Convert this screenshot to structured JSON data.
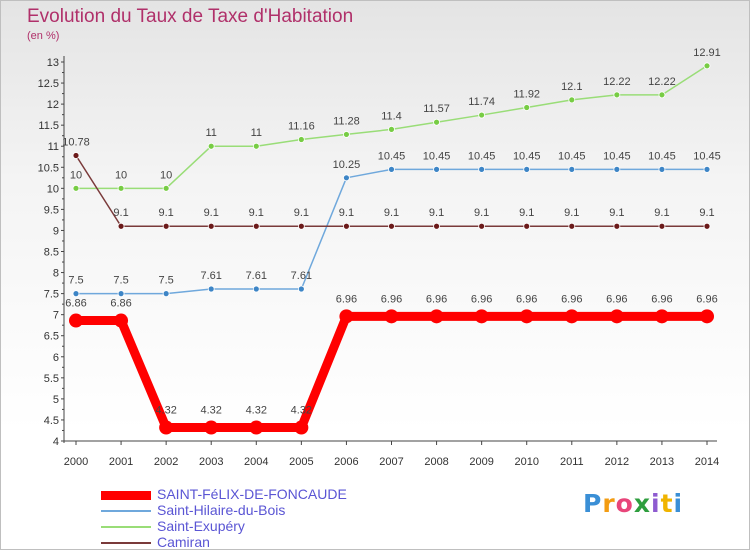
{
  "chart_data": {
    "type": "line",
    "title": "Evolution du Taux de Taxe d'Habitation",
    "unit_label": "(en %)",
    "x": [
      "2000",
      "2001",
      "2002",
      "2003",
      "2004",
      "2005",
      "2006",
      "2007",
      "2008",
      "2009",
      "2010",
      "2011",
      "2012",
      "2013",
      "2014"
    ],
    "ylim": [
      4,
      13
    ],
    "yticks": [
      "4",
      "4.5",
      "5",
      "5.5",
      "6",
      "6.5",
      "7",
      "7.5",
      "8",
      "8.5",
      "9",
      "9.5",
      "10",
      "10.5",
      "11",
      "11.5",
      "12",
      "12.5",
      "13"
    ],
    "grid": false,
    "legend_position": "bottom-left",
    "series": [
      {
        "name": "SAINT-FéLIX-DE-FONCAUDE",
        "color": "#ff0000",
        "values": [
          6.86,
          6.86,
          4.32,
          4.32,
          4.32,
          4.32,
          6.96,
          6.96,
          6.96,
          6.96,
          6.96,
          6.96,
          6.96,
          6.96,
          6.96
        ],
        "labels": [
          "6.86",
          "6.86",
          "4.32",
          "4.32",
          "4.32",
          "4.32",
          "6.96",
          "6.96",
          "6.96",
          "6.96",
          "6.96",
          "6.96",
          "6.96",
          "6.96",
          "6.96"
        ]
      },
      {
        "name": "Saint-Hilaire-du-Bois",
        "color": "#6fa8dc",
        "marker_color": "#3d85c6",
        "values": [
          7.5,
          7.5,
          7.5,
          7.61,
          7.61,
          7.61,
          10.25,
          10.45,
          10.45,
          10.45,
          10.45,
          10.45,
          10.45,
          10.45,
          10.45
        ],
        "labels": [
          "7.5",
          "7.5",
          "7.5",
          "7.61",
          "7.61",
          "7.61",
          "10.25",
          "10.45",
          "10.45",
          "10.45",
          "10.45",
          "10.45",
          "10.45",
          "10.45",
          "10.45"
        ]
      },
      {
        "name": "Saint-Exupéry",
        "color": "#99dd77",
        "marker_color": "#77cc44",
        "values": [
          10,
          10,
          10,
          11,
          11,
          11.16,
          11.28,
          11.4,
          11.57,
          11.74,
          11.92,
          12.1,
          12.22,
          12.22,
          12.91
        ],
        "labels": [
          "10",
          "10",
          "10",
          "11",
          "11",
          "11.16",
          "11.28",
          "11.4",
          "11.57",
          "11.74",
          "11.92",
          "12.1",
          "12.22",
          "12.22",
          "12.91"
        ]
      },
      {
        "name": "Camiran",
        "color": "#7a3a3a",
        "marker_color": "#6b1a1a",
        "values": [
          10.78,
          9.1,
          9.1,
          9.1,
          9.1,
          9.1,
          9.1,
          9.1,
          9.1,
          9.1,
          9.1,
          9.1,
          9.1,
          9.1,
          9.1
        ],
        "labels": [
          "10.78",
          "9.1",
          "9.1",
          "9.1",
          "9.1",
          "9.1",
          "9.1",
          "9.1",
          "9.1",
          "9.1",
          "9.1",
          "9.1",
          "9.1",
          "9.1",
          "9.1"
        ]
      }
    ]
  },
  "logo": {
    "letters": [
      "P",
      "r",
      "o",
      "x",
      "i",
      "t",
      "i"
    ],
    "colors": [
      "#3a8fd6",
      "#f39c12",
      "#e8457a",
      "#2e9e3e",
      "#8e5bd0",
      "#f0b400",
      "#3a8fd6"
    ]
  }
}
